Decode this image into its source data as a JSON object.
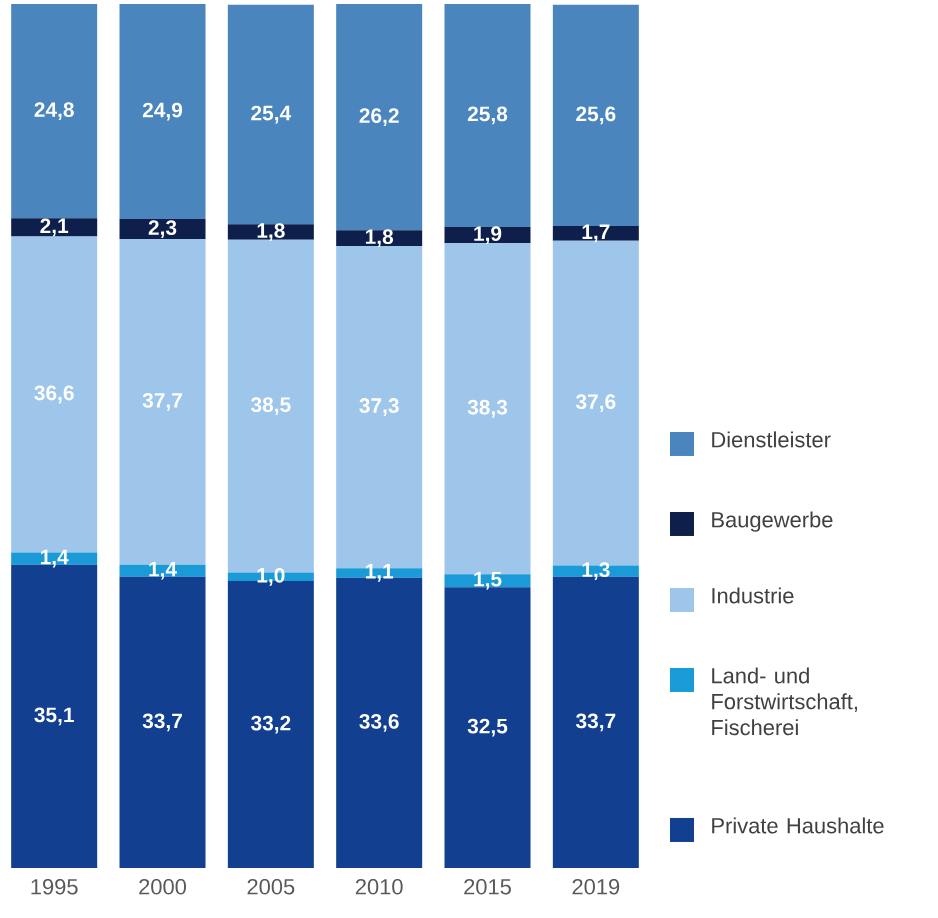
{
  "chart_data": {
    "type": "bar",
    "stacked": true,
    "legend": "right",
    "categories": [
      "1995",
      "2000",
      "2005",
      "2010",
      "2015",
      "2019"
    ],
    "series": [
      {
        "name": "Private Haushalte",
        "color": "#123f8f",
        "values": [
          35.1,
          33.7,
          33.2,
          33.6,
          32.5,
          33.7
        ],
        "value_labels": [
          "35,1",
          "33,7",
          "33,2",
          "33,6",
          "32,5",
          "33,7"
        ]
      },
      {
        "name": "Land- und Forstwirtschaft, Fischerei",
        "color": "#1a9ad6",
        "values": [
          1.4,
          1.4,
          1.0,
          1.1,
          1.5,
          1.3
        ],
        "value_labels": [
          "1,4",
          "1,4",
          "1,0",
          "1,1",
          "1,5",
          "1,3"
        ]
      },
      {
        "name": "Industrie",
        "color": "#9dc6ea",
        "values": [
          36.6,
          37.7,
          38.5,
          37.3,
          38.3,
          37.6
        ],
        "value_labels": [
          "36,6",
          "37,7",
          "38,5",
          "37,3",
          "38,3",
          "37,6"
        ]
      },
      {
        "name": "Baugewerbe",
        "color": "#0d1f4a",
        "values": [
          2.1,
          2.3,
          1.8,
          1.8,
          1.9,
          1.7
        ],
        "value_labels": [
          "2,1",
          "2,3",
          "1,8",
          "1,8",
          "1,9",
          "1,7"
        ]
      },
      {
        "name": "Dienstleister",
        "color": "#4a86bd",
        "values": [
          24.8,
          24.9,
          25.4,
          26.2,
          25.8,
          25.6
        ],
        "value_labels": [
          "24,8",
          "24,9",
          "25,4",
          "26,2",
          "25,8",
          "25,6"
        ]
      }
    ]
  }
}
